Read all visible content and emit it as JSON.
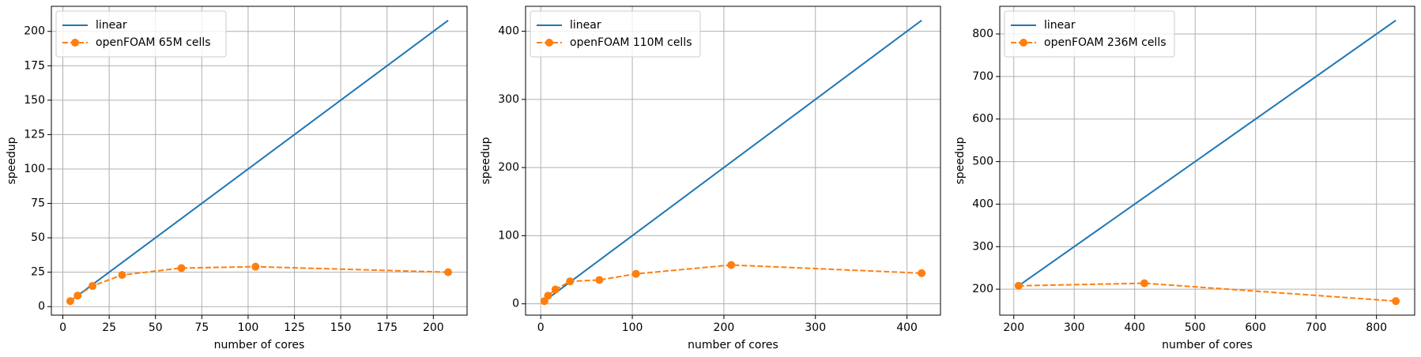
{
  "chart_data": [
    {
      "type": "line",
      "x_label": "number of cores",
      "y_label": "speedup",
      "grid": true,
      "legend": "upper left",
      "xlim": [
        -6.2,
        218.2
      ],
      "xticks": [
        0,
        25,
        50,
        75,
        100,
        125,
        150,
        175,
        200
      ],
      "ylim": [
        -6.2,
        218.2
      ],
      "yticks": [
        0,
        25,
        50,
        75,
        100,
        125,
        150,
        175,
        200
      ],
      "series": [
        {
          "name": "linear",
          "color": "#1f77b4",
          "linestyle": "solid",
          "x": [
            4,
            208
          ],
          "values": [
            4,
            208
          ]
        },
        {
          "name": "openFOAM 65M cells",
          "color": "#ff7f0e",
          "linestyle": "dashed",
          "marker": "o",
          "x": [
            4,
            8,
            16,
            32,
            64,
            104,
            208
          ],
          "values": [
            4,
            8,
            15,
            23,
            28,
            29,
            25
          ]
        }
      ]
    },
    {
      "type": "line",
      "x_label": "number of cores",
      "y_label": "speedup",
      "grid": true,
      "legend": "upper left",
      "xlim": [
        -16.6,
        436.6
      ],
      "xticks": [
        0,
        100,
        200,
        300,
        400
      ],
      "ylim": [
        -16.6,
        436.6
      ],
      "yticks": [
        0,
        100,
        200,
        300,
        400
      ],
      "series": [
        {
          "name": "linear",
          "color": "#1f77b4",
          "linestyle": "solid",
          "x": [
            4,
            416
          ],
          "values": [
            4,
            416
          ]
        },
        {
          "name": "openFOAM 110M cells",
          "color": "#ff7f0e",
          "linestyle": "dashed",
          "marker": "o",
          "x": [
            4,
            8,
            16,
            32,
            64,
            104,
            208,
            416
          ],
          "values": [
            4,
            12,
            21,
            33,
            35,
            44,
            57,
            45
          ]
        }
      ]
    },
    {
      "type": "line",
      "x_label": "number of cores",
      "y_label": "speedup",
      "grid": true,
      "legend": "upper left",
      "xlim": [
        176.8,
        863.2
      ],
      "xticks": [
        200,
        300,
        400,
        500,
        600,
        700,
        800
      ],
      "ylim": [
        139,
        865
      ],
      "yticks": [
        200,
        300,
        400,
        500,
        600,
        700,
        800
      ],
      "series": [
        {
          "name": "linear",
          "color": "#1f77b4",
          "linestyle": "solid",
          "x": [
            208,
            832
          ],
          "values": [
            208,
            832
          ]
        },
        {
          "name": "openFOAM 236M cells",
          "color": "#ff7f0e",
          "linestyle": "dashed",
          "marker": "o",
          "x": [
            208,
            416,
            832
          ],
          "values": [
            208,
            214,
            172
          ]
        }
      ]
    }
  ]
}
